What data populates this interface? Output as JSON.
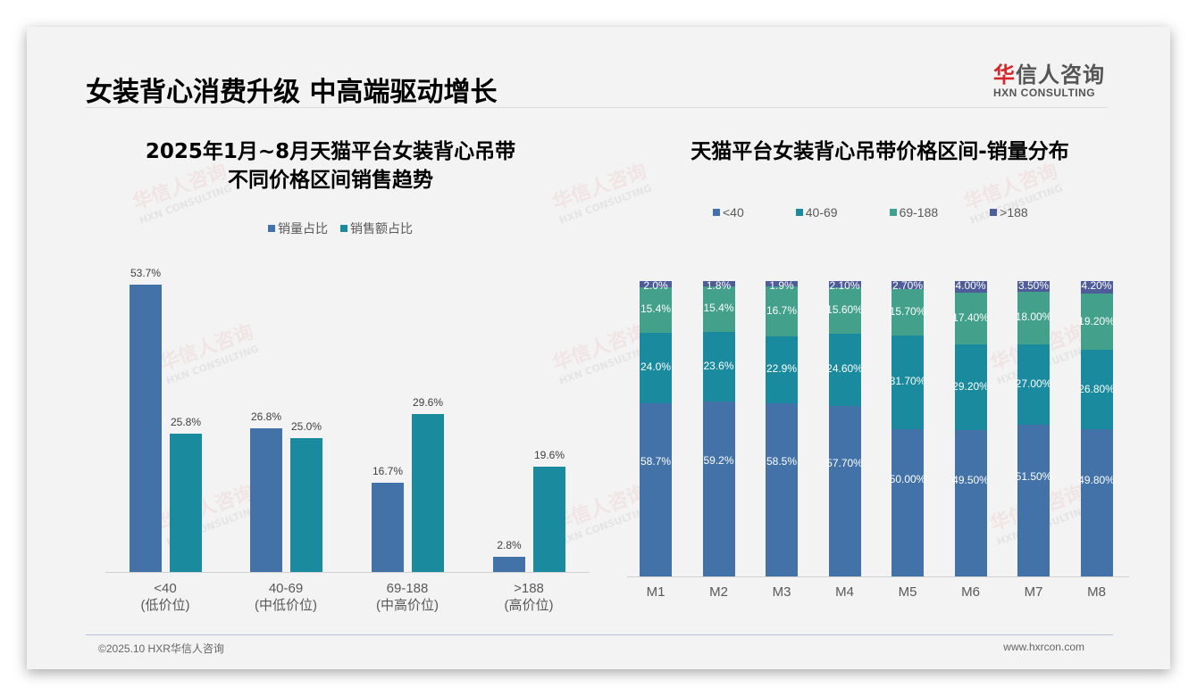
{
  "header": {
    "title": "女装背心消费升级 中高端驱动增长",
    "logo_cn_red": "华",
    "logo_cn_rest": "信人咨询",
    "logo_en": "HXN CONSULTING"
  },
  "watermark": {
    "cn": "华信人咨询",
    "en": "HXN CONSULTING"
  },
  "left_chart": {
    "title_line1": "2025年1月~8月天猫平台女装背心吊带",
    "title_line2": "不同价格区间销售趋势",
    "legend": [
      {
        "label": "销量占比",
        "color": "#4372a8"
      },
      {
        "label": "销售额占比",
        "color": "#1a8a9f"
      }
    ]
  },
  "right_chart": {
    "title": "天猫平台女装背心吊带价格区间-销量分布",
    "legend": [
      {
        "label": "<40",
        "color": "#4372a8"
      },
      {
        "label": "40-69",
        "color": "#1a8a9f"
      },
      {
        "label": "69-188",
        "color": "#43a08a"
      },
      {
        "label": ">188",
        "color": "#4f5c9a"
      }
    ]
  },
  "chart_data": [
    {
      "type": "bar",
      "title": "2025年1月~8月天猫平台女装背心吊带不同价格区间销售趋势",
      "categories": [
        "<40 (低价位)",
        "40-69 (中低价位)",
        "69-188 (中高价位)",
        ">188 (高价位)"
      ],
      "category_line1": [
        "<40",
        "40-69",
        "69-188",
        ">188"
      ],
      "category_line2": [
        "(低价位)",
        "(中低价位)",
        "(中高价位)",
        "(高价位)"
      ],
      "series": [
        {
          "name": "销量占比",
          "values": [
            53.7,
            26.8,
            16.7,
            2.8
          ],
          "labels": [
            "53.7%",
            "26.8%",
            "16.7%",
            "2.8%"
          ],
          "color": "#4372a8"
        },
        {
          "name": "销售额占比",
          "values": [
            25.8,
            25.0,
            29.6,
            19.6
          ],
          "labels": [
            "25.8%",
            "25.0%",
            "29.6%",
            "19.6%"
          ],
          "color": "#1a8a9f"
        }
      ],
      "xlabel": "",
      "ylabel": "",
      "grid": false,
      "legend_position": "top"
    },
    {
      "type": "bar",
      "stacked": true,
      "title": "天猫平台女装背心吊带价格区间-销量分布",
      "categories": [
        "M1",
        "M2",
        "M3",
        "M4",
        "M5",
        "M6",
        "M7",
        "M8"
      ],
      "series": [
        {
          "name": "<40",
          "values": [
            58.7,
            59.2,
            58.5,
            57.7,
            50.0,
            49.5,
            51.5,
            49.8
          ],
          "labels": [
            "58.7%",
            "59.2%",
            "58.5%",
            "57.70%",
            "50.00%",
            "49.50%",
            "51.50%",
            "49.80%"
          ],
          "color": "#4372a8"
        },
        {
          "name": "40-69",
          "values": [
            24.0,
            23.6,
            22.9,
            24.6,
            31.7,
            29.2,
            27.0,
            26.8
          ],
          "labels": [
            "24.0%",
            "23.6%",
            "22.9%",
            "24.60%",
            "31.70%",
            "29.20%",
            "27.00%",
            "26.80%"
          ],
          "color": "#1a8a9f"
        },
        {
          "name": "69-188",
          "values": [
            15.4,
            15.4,
            16.7,
            15.6,
            15.7,
            17.4,
            18.0,
            19.2
          ],
          "labels": [
            "15.4%",
            "15.4%",
            "16.7%",
            "15.60%",
            "15.70%",
            "17.40%",
            "18.00%",
            "19.20%"
          ],
          "color": "#43a08a"
        },
        {
          "name": ">188",
          "values": [
            2.0,
            1.8,
            1.9,
            2.1,
            2.7,
            4.0,
            3.5,
            4.2
          ],
          "labels": [
            "2.0%",
            "1.8%",
            "1.9%",
            "2.10%",
            "2.70%",
            "4.00%",
            "3.50%",
            "4.20%"
          ],
          "color": "#4f5c9a"
        }
      ],
      "ylim": [
        0,
        100
      ],
      "grid": false,
      "legend_position": "top"
    }
  ],
  "footer": {
    "copyright": "©2025.10 HXR华信人咨询",
    "website": "www.hxrcon.com"
  }
}
